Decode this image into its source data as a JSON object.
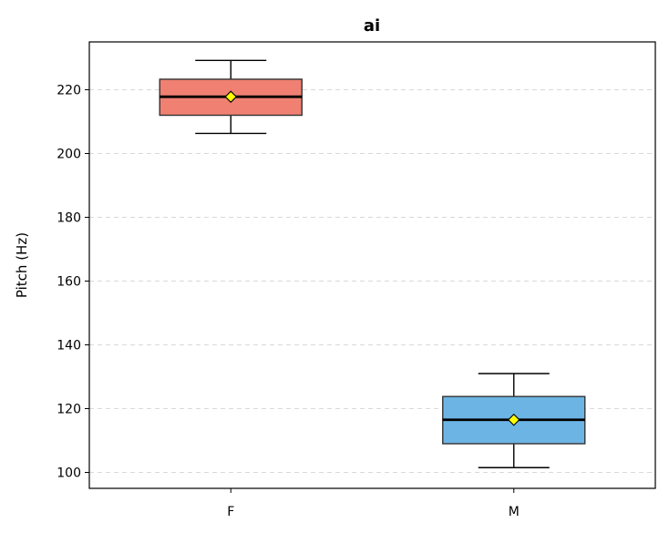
{
  "chart_data": {
    "type": "box",
    "title": "ai",
    "xlabel": "",
    "ylabel": "Pitch (Hz)",
    "ylim": [
      95,
      235
    ],
    "yticks": [
      100,
      120,
      140,
      160,
      180,
      200,
      220
    ],
    "grid": "y-dashed",
    "categories": [
      "F",
      "M"
    ],
    "boxes": [
      {
        "category": "F",
        "whisker_low": 206.3,
        "q1": 212.0,
        "median": 217.8,
        "q3": 223.3,
        "whisker_high": 229.2,
        "mean": 217.8,
        "color": "#f08072"
      },
      {
        "category": "M",
        "whisker_low": 101.5,
        "q1": 109.0,
        "median": 116.5,
        "q3": 123.8,
        "whisker_high": 131.0,
        "mean": 116.5,
        "color": "#6cb4e4"
      }
    ],
    "mean_marker_color": "#ffff00"
  }
}
